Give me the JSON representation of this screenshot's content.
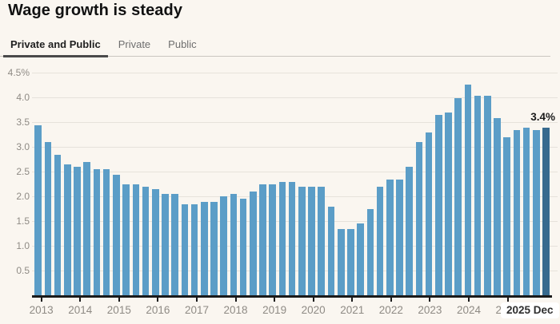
{
  "title": "Wage growth is steady",
  "tabs": [
    {
      "label": "Private and Public",
      "active": true
    },
    {
      "label": "Private",
      "active": false
    },
    {
      "label": "Public",
      "active": false
    }
  ],
  "chart_data": {
    "type": "bar",
    "title": "Wage growth is steady",
    "unit": "%",
    "ylim": [
      0,
      4.5
    ],
    "grid": "horizontal",
    "legend": "none",
    "yticks": [
      {
        "value": 4.5,
        "label": "4.5%"
      },
      {
        "value": 4.0,
        "label": "4.0"
      },
      {
        "value": 3.5,
        "label": "3.5"
      },
      {
        "value": 3.0,
        "label": "3.0"
      },
      {
        "value": 2.5,
        "label": "2.5"
      },
      {
        "value": 2.0,
        "label": "2.0"
      },
      {
        "value": 1.5,
        "label": "1.5"
      },
      {
        "value": 1.0,
        "label": "1.0"
      },
      {
        "value": 0.5,
        "label": "0.5"
      }
    ],
    "x_year_labels": [
      "2013",
      "2014",
      "2015",
      "2016",
      "2017",
      "2018",
      "2019",
      "2020",
      "2021",
      "2022",
      "2023",
      "2024",
      "2025"
    ],
    "annotation": {
      "text": "3.4%",
      "target": "2025 Dec"
    },
    "last_period_label": "2025 Dec",
    "highlight_last_bar": true,
    "series": [
      {
        "name": "Private and Public",
        "points": [
          {
            "period": "2012 Q4",
            "value": 3.45
          },
          {
            "period": "2013 Q1",
            "value": 3.1
          },
          {
            "period": "2013 Q2",
            "value": 2.85
          },
          {
            "period": "2013 Q3",
            "value": 2.65
          },
          {
            "period": "2013 Q4",
            "value": 2.6
          },
          {
            "period": "2014 Q1",
            "value": 2.7
          },
          {
            "period": "2014 Q2",
            "value": 2.55
          },
          {
            "period": "2014 Q3",
            "value": 2.55
          },
          {
            "period": "2014 Q4",
            "value": 2.45
          },
          {
            "period": "2015 Q1",
            "value": 2.25
          },
          {
            "period": "2015 Q2",
            "value": 2.25
          },
          {
            "period": "2015 Q3",
            "value": 2.2
          },
          {
            "period": "2015 Q4",
            "value": 2.15
          },
          {
            "period": "2016 Q1",
            "value": 2.05
          },
          {
            "period": "2016 Q2",
            "value": 2.05
          },
          {
            "period": "2016 Q3",
            "value": 1.85
          },
          {
            "period": "2016 Q4",
            "value": 1.85
          },
          {
            "period": "2017 Q1",
            "value": 1.9
          },
          {
            "period": "2017 Q2",
            "value": 1.9
          },
          {
            "period": "2017 Q3",
            "value": 2.0
          },
          {
            "period": "2017 Q4",
            "value": 2.05
          },
          {
            "period": "2018 Q1",
            "value": 1.95
          },
          {
            "period": "2018 Q2",
            "value": 2.1
          },
          {
            "period": "2018 Q3",
            "value": 2.25
          },
          {
            "period": "2018 Q4",
            "value": 2.25
          },
          {
            "period": "2019 Q1",
            "value": 2.3
          },
          {
            "period": "2019 Q2",
            "value": 2.3
          },
          {
            "period": "2019 Q3",
            "value": 2.2
          },
          {
            "period": "2019 Q4",
            "value": 2.2
          },
          {
            "period": "2020 Q1",
            "value": 2.2
          },
          {
            "period": "2020 Q2",
            "value": 1.8
          },
          {
            "period": "2020 Q3",
            "value": 1.35
          },
          {
            "period": "2020 Q4",
            "value": 1.35
          },
          {
            "period": "2021 Q1",
            "value": 1.45
          },
          {
            "period": "2021 Q2",
            "value": 1.75
          },
          {
            "period": "2021 Q3",
            "value": 2.2
          },
          {
            "period": "2021 Q4",
            "value": 2.35
          },
          {
            "period": "2022 Q1",
            "value": 2.35
          },
          {
            "period": "2022 Q2",
            "value": 2.6
          },
          {
            "period": "2022 Q3",
            "value": 3.1
          },
          {
            "period": "2022 Q4",
            "value": 3.3
          },
          {
            "period": "2023 Q1",
            "value": 3.65
          },
          {
            "period": "2023 Q2",
            "value": 3.7
          },
          {
            "period": "2023 Q3",
            "value": 4.0
          },
          {
            "period": "2023 Q4",
            "value": 4.27
          },
          {
            "period": "2024 Q1",
            "value": 4.05
          },
          {
            "period": "2024 Q2",
            "value": 4.05
          },
          {
            "period": "2024 Q3",
            "value": 3.6
          },
          {
            "period": "2024 Q4",
            "value": 3.2
          },
          {
            "period": "2025 Q1",
            "value": 3.35
          },
          {
            "period": "2025 Q2",
            "value": 3.4
          },
          {
            "period": "2025 Q3",
            "value": 3.35
          },
          {
            "period": "2025 Q4",
            "value": 3.4
          }
        ]
      }
    ]
  },
  "colors": {
    "background": "#faf6f0",
    "bar": "#5b9dc7",
    "bar_highlight": "#376a8e",
    "grid": "#e6e2db",
    "axis": "#1a1a1a",
    "text": "#111111",
    "text_muted": "#8f8b85"
  }
}
